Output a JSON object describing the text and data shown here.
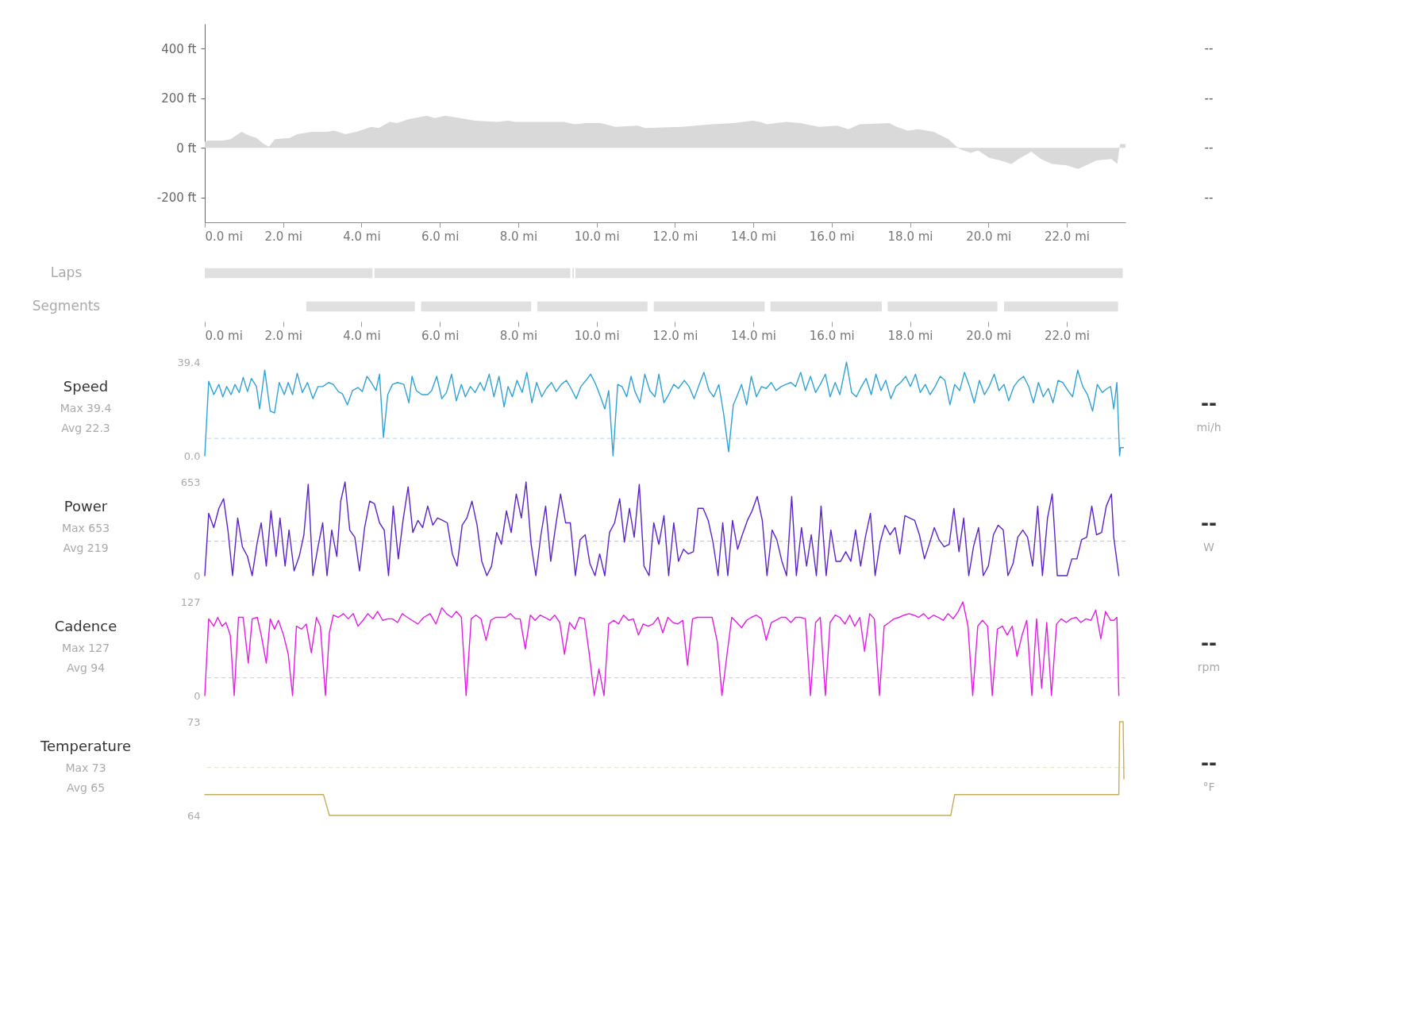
{
  "chart_data": [
    {
      "type": "area",
      "color": "#d9d9d9",
      "x": [
        0,
        0.09,
        0.47,
        0.66,
        0.94,
        1.13,
        1.32,
        1.51,
        1.64,
        1.79,
        2.17,
        2.36,
        2.74,
        3.12,
        3.3,
        3.59,
        3.87,
        4.25,
        4.44,
        4.72,
        4.91,
        5.19,
        5.67,
        5.86,
        6.14,
        6.52,
        6.89,
        7.46,
        7.74,
        7.93,
        8.4,
        9.16,
        9.44,
        9.73,
        10.1,
        10.48,
        11.05,
        11.24,
        12.18,
        12.94,
        13.5,
        13.98,
        14.17,
        14.35,
        14.83,
        15.2,
        15.68,
        16.15,
        16.43,
        16.71,
        17.47,
        17.66,
        17.94,
        18.22,
        18.6,
        18.98,
        19.26,
        19.55,
        19.74,
        20.02,
        20.3,
        20.59,
        20.77,
        21.1,
        21.34,
        21.62,
        22.0,
        22.29,
        22.57,
        22.76,
        23.14,
        23.29,
        23.36,
        23.5
      ],
      "values": [
        25,
        30,
        30,
        35,
        65,
        50,
        40,
        15,
        5,
        35,
        40,
        55,
        65,
        65,
        70,
        55,
        65,
        85,
        80,
        105,
        100,
        115,
        130,
        120,
        130,
        120,
        110,
        105,
        110,
        105,
        105,
        105,
        95,
        100,
        100,
        85,
        90,
        80,
        85,
        95,
        100,
        110,
        105,
        95,
        105,
        100,
        85,
        90,
        75,
        95,
        100,
        85,
        70,
        75,
        65,
        35,
        -5,
        -20,
        -10,
        -40,
        -50,
        -65,
        -45,
        -15,
        -45,
        -65,
        -70,
        -85,
        -65,
        -50,
        -45,
        -65,
        15,
        15
      ],
      "xlim": [
        0,
        23.5
      ],
      "xticks": [
        {
          "value": 0,
          "label": "0.0 mi"
        },
        {
          "value": 2,
          "label": "2.0 mi"
        },
        {
          "value": 4,
          "label": "4.0 mi"
        },
        {
          "value": 6,
          "label": "6.0 mi"
        },
        {
          "value": 8,
          "label": "8.0 mi"
        },
        {
          "value": 10,
          "label": "10.0 mi"
        },
        {
          "value": 12,
          "label": "12.0 mi"
        },
        {
          "value": 14,
          "label": "14.0 mi"
        },
        {
          "value": 16,
          "label": "16.0 mi"
        },
        {
          "value": 18,
          "label": "18.0 mi"
        },
        {
          "value": 20,
          "label": "20.0 mi"
        },
        {
          "value": 22,
          "label": "22.0 mi"
        }
      ],
      "ylim": [
        -300,
        500
      ],
      "yticks": [
        {
          "value": -200,
          "label": "-200 ft"
        },
        {
          "value": 0,
          "label": "0 ft"
        },
        {
          "value": 200,
          "label": "200 ft"
        },
        {
          "value": 400,
          "label": "400 ft"
        }
      ],
      "annotations": [
        "--",
        "--",
        "--",
        "--"
      ]
    },
    {
      "type": "bar",
      "orientation": "horizontal",
      "categories": [
        "Laps",
        "Segments"
      ],
      "xlim": [
        0,
        23.5
      ],
      "xticks": [
        {
          "value": 0,
          "label": "0.0 mi"
        },
        {
          "value": 2,
          "label": "2.0 mi"
        },
        {
          "value": 4,
          "label": "4.0 mi"
        },
        {
          "value": 6,
          "label": "6.0 mi"
        },
        {
          "value": 8,
          "label": "8.0 mi"
        },
        {
          "value": 10,
          "label": "10.0 mi"
        },
        {
          "value": 12,
          "label": "12.0 mi"
        },
        {
          "value": 14,
          "label": "14.0 mi"
        },
        {
          "value": 16,
          "label": "16.0 mi"
        },
        {
          "value": 18,
          "label": "18.0 mi"
        },
        {
          "value": 20,
          "label": "20.0 mi"
        },
        {
          "value": 22,
          "label": "22.0 mi"
        }
      ],
      "series": [
        {
          "color": "#e0e0e0",
          "values": [
            4.28,
            2.77
          ],
          "base": [
            0,
            2.59
          ]
        },
        {
          "color": "#e0e0e0",
          "values": [
            5.0,
            2.81
          ],
          "base": [
            4.33,
            5.52
          ]
        },
        {
          "color": "#e0e0e0",
          "values": [
            0.04,
            2.81
          ],
          "base": [
            9.38,
            8.49
          ]
        },
        {
          "color": "#e0e0e0",
          "values": [
            13.97,
            2.83
          ],
          "base": [
            9.46,
            11.46
          ]
        },
        {
          "color": "#e0e0e0",
          "values": [
            null,
            2.84
          ],
          "base": [
            null,
            14.44
          ]
        },
        {
          "color": "#e0e0e0",
          "values": [
            null,
            2.8
          ],
          "base": [
            null,
            17.43
          ]
        },
        {
          "color": "#e0e0e0",
          "values": [
            null,
            2.91
          ],
          "base": [
            null,
            20.4
          ]
        }
      ]
    },
    {
      "type": "line",
      "title": "Speed",
      "annotations": [
        "Max 39.4",
        "Avg 22.3",
        "--",
        "mi/h"
      ],
      "x": [
        0,
        0.1,
        0.23,
        0.36,
        0.46,
        0.56,
        0.67,
        0.77,
        0.88,
        0.98,
        1.09,
        1.19,
        1.32,
        1.4,
        1.53,
        1.67,
        1.78,
        1.9,
        2.03,
        2.13,
        2.24,
        2.36,
        2.49,
        2.62,
        2.76,
        2.89,
        3.01,
        3.16,
        3.28,
        3.41,
        3.51,
        3.64,
        3.77,
        3.91,
        4.02,
        4.14,
        4.25,
        4.37,
        4.46,
        4.56,
        4.67,
        4.79,
        4.92,
        5.08,
        5.21,
        5.29,
        5.4,
        5.54,
        5.69,
        5.79,
        5.92,
        6.05,
        6.17,
        6.3,
        6.42,
        6.55,
        6.65,
        6.78,
        6.9,
        7.03,
        7.13,
        7.26,
        7.38,
        7.51,
        7.64,
        7.74,
        7.85,
        7.97,
        8.1,
        8.22,
        8.35,
        8.47,
        8.6,
        8.72,
        8.85,
        8.97,
        9.1,
        9.23,
        9.35,
        9.48,
        9.6,
        9.73,
        9.85,
        9.98,
        10.1,
        10.21,
        10.31,
        10.42,
        10.54,
        10.65,
        10.77,
        10.88,
        10.98,
        11.11,
        11.23,
        11.36,
        11.49,
        11.59,
        11.72,
        11.84,
        11.97,
        12.09,
        12.24,
        12.36,
        12.49,
        12.62,
        12.74,
        12.87,
        12.99,
        13.12,
        13.24,
        13.37,
        13.49,
        13.6,
        13.7,
        13.83,
        13.95,
        14.08,
        14.21,
        14.33,
        14.46,
        14.58,
        14.71,
        14.83,
        14.96,
        15.08,
        15.21,
        15.33,
        15.46,
        15.59,
        15.71,
        15.84,
        15.96,
        16.09,
        16.21,
        16.38,
        16.51,
        16.63,
        16.76,
        16.88,
        17.01,
        17.13,
        17.26,
        17.38,
        17.51,
        17.64,
        17.76,
        17.89,
        18.01,
        18.14,
        18.26,
        18.39,
        18.51,
        18.64,
        18.77,
        18.89,
        19.02,
        19.14,
        19.27,
        19.39,
        19.52,
        19.64,
        19.77,
        19.9,
        20.02,
        20.15,
        20.27,
        20.4,
        20.52,
        20.65,
        20.77,
        20.9,
        21.03,
        21.15,
        21.28,
        21.4,
        21.53,
        21.65,
        21.78,
        21.9,
        22.03,
        22.15,
        22.28,
        22.41,
        22.53,
        22.66,
        22.78,
        22.91,
        23.03,
        23.12,
        23.2,
        23.28,
        23.35,
        23.37,
        23.45
      ],
      "series": [
        {
          "color": "#2fa2d6",
          "values": [
            0,
            31.3,
            25.7,
            30.0,
            24.8,
            29.1,
            25.7,
            30.0,
            26.6,
            33.0,
            27.0,
            32.5,
            29.1,
            19.7,
            36.0,
            18.8,
            18.0,
            30.8,
            25.7,
            30.8,
            25.7,
            34.7,
            26.6,
            30.8,
            24.0,
            29.1,
            29.1,
            30.8,
            30.0,
            27.0,
            26.1,
            21.4,
            27.4,
            28.7,
            27.0,
            33.4,
            30.8,
            27.4,
            34.3,
            7.7,
            25.7,
            30.0,
            30.8,
            30.0,
            22.3,
            33.4,
            27.4,
            25.7,
            25.7,
            27.4,
            33.4,
            24.0,
            26.6,
            34.3,
            23.1,
            30.0,
            24.8,
            29.1,
            26.6,
            30.8,
            27.4,
            34.3,
            24.8,
            33.4,
            20.6,
            29.1,
            24.8,
            31.7,
            26.6,
            35.1,
            22.3,
            30.8,
            24.8,
            28.3,
            30.8,
            27.0,
            30.0,
            31.7,
            28.3,
            24.0,
            29.1,
            31.7,
            34.3,
            30.0,
            24.8,
            19.7,
            27.4,
            0,
            30.0,
            29.1,
            24.8,
            33.4,
            27.0,
            22.3,
            34.3,
            27.4,
            24.8,
            34.3,
            22.3,
            25.7,
            30.0,
            28.3,
            31.7,
            29.1,
            24.0,
            30.0,
            35.1,
            27.4,
            24.8,
            30.0,
            18.0,
            1.7,
            21.4,
            25.7,
            30.0,
            21.4,
            33.4,
            24.8,
            29.1,
            28.3,
            30.8,
            27.4,
            29.1,
            30.0,
            30.8,
            29.1,
            35.1,
            27.4,
            33.4,
            26.6,
            30.0,
            34.3,
            24.8,
            30.8,
            25.7,
            39.4,
            26.6,
            24.8,
            29.1,
            32.5,
            25.7,
            34.3,
            27.4,
            31.7,
            24.0,
            29.1,
            30.8,
            33.4,
            29.1,
            34.3,
            26.6,
            30.0,
            25.7,
            29.1,
            33.4,
            31.7,
            21.4,
            30.0,
            27.4,
            35.1,
            29.1,
            22.3,
            31.7,
            25.7,
            29.1,
            34.3,
            27.4,
            30.0,
            23.1,
            29.1,
            31.7,
            33.4,
            29.1,
            22.3,
            30.8,
            24.8,
            28.3,
            22.3,
            31.7,
            30.8,
            27.4,
            24.8,
            36.0,
            29.1,
            25.7,
            18.8,
            30.0,
            26.6,
            28.3,
            29.1,
            19.7,
            30.8,
            0,
            3.4,
            3.4
          ]
        }
      ],
      "xlim": [
        0,
        23.5
      ],
      "tick_labels": "y",
      "ylim": [
        0,
        39.4
      ],
      "yticks": [
        {
          "value": 0,
          "label": "0.0"
        },
        39.4
      ],
      "ref_lines": [
        {
          "axis": "y",
          "value": 7.3,
          "color": "#a9dcef",
          "line_style": "dashed"
        }
      ]
    },
    {
      "type": "line",
      "title": "Power",
      "annotations": [
        "Max 653",
        "Avg 219",
        "--",
        "W"
      ],
      "x": [
        0,
        0.1,
        0.23,
        0.36,
        0.48,
        0.59,
        0.71,
        0.84,
        0.96,
        1.09,
        1.21,
        1.34,
        1.44,
        1.57,
        1.69,
        1.82,
        1.92,
        2.05,
        2.15,
        2.28,
        2.41,
        2.53,
        2.64,
        2.76,
        2.89,
        3.01,
        3.12,
        3.24,
        3.37,
        3.47,
        3.58,
        3.7,
        3.83,
        3.95,
        4.08,
        4.21,
        4.33,
        4.46,
        4.58,
        4.69,
        4.81,
        4.94,
        5.06,
        5.19,
        5.31,
        5.44,
        5.56,
        5.69,
        5.82,
        5.94,
        6.07,
        6.19,
        6.32,
        6.44,
        6.57,
        6.69,
        6.82,
        6.95,
        7.07,
        7.2,
        7.32,
        7.45,
        7.57,
        7.7,
        7.82,
        7.95,
        8.08,
        8.2,
        8.33,
        8.45,
        8.58,
        8.7,
        8.83,
        8.95,
        9.08,
        9.21,
        9.33,
        9.46,
        9.58,
        9.71,
        9.83,
        9.96,
        10.08,
        10.21,
        10.33,
        10.46,
        10.59,
        10.71,
        10.84,
        10.96,
        11.09,
        11.21,
        11.34,
        11.46,
        11.59,
        11.72,
        11.84,
        11.97,
        12.09,
        12.22,
        12.34,
        12.47,
        12.59,
        12.72,
        12.85,
        12.97,
        13.1,
        13.22,
        13.35,
        13.47,
        13.6,
        13.72,
        13.85,
        13.97,
        14.1,
        14.23,
        14.35,
        14.48,
        14.6,
        14.73,
        14.85,
        14.98,
        15.1,
        15.23,
        15.36,
        15.48,
        15.61,
        15.73,
        15.86,
        15.98,
        16.11,
        16.23,
        16.36,
        16.49,
        16.61,
        16.74,
        16.86,
        16.99,
        17.11,
        17.24,
        17.36,
        17.49,
        17.62,
        17.74,
        17.87,
        17.99,
        18.12,
        18.24,
        18.37,
        18.49,
        18.62,
        18.74,
        18.87,
        19.0,
        19.12,
        19.25,
        19.37,
        19.5,
        19.62,
        19.75,
        19.87,
        20.0,
        20.13,
        20.25,
        20.38,
        20.5,
        20.63,
        20.75,
        20.88,
        21.0,
        21.13,
        21.26,
        21.38,
        21.51,
        21.63,
        21.76,
        21.88,
        22.01,
        22.13,
        22.26,
        22.38,
        22.51,
        22.64,
        22.76,
        22.89,
        23.01,
        23.14,
        23.2,
        23.33
      ],
      "series": [
        {
          "color": "#5b22c9",
          "values": [
            0,
            435,
            335,
            469,
            536,
            318,
            0,
            402,
            201,
            134,
            0,
            234,
            368,
            67,
            452,
            134,
            402,
            67,
            318,
            33,
            134,
            285,
            636,
            0,
            201,
            368,
            0,
            318,
            134,
            519,
            653,
            318,
            268,
            33,
            335,
            519,
            502,
            368,
            318,
            0,
            485,
            117,
            385,
            619,
            301,
            385,
            335,
            485,
            352,
            402,
            385,
            368,
            151,
            67,
            352,
            402,
            519,
            352,
            100,
            0,
            67,
            301,
            218,
            452,
            301,
            569,
            402,
            653,
            218,
            0,
            285,
            485,
            100,
            335,
            569,
            368,
            368,
            0,
            251,
            285,
            84,
            0,
            151,
            0,
            301,
            368,
            536,
            234,
            469,
            268,
            636,
            67,
            0,
            368,
            218,
            418,
            0,
            368,
            100,
            184,
            151,
            167,
            469,
            469,
            385,
            234,
            0,
            368,
            0,
            385,
            184,
            285,
            385,
            452,
            552,
            385,
            0,
            318,
            251,
            100,
            0,
            552,
            0,
            335,
            67,
            285,
            0,
            485,
            0,
            318,
            100,
            100,
            167,
            100,
            318,
            67,
            268,
            435,
            0,
            234,
            352,
            285,
            335,
            151,
            418,
            402,
            385,
            285,
            117,
            218,
            335,
            251,
            201,
            218,
            469,
            167,
            402,
            0,
            201,
            335,
            0,
            67,
            285,
            352,
            318,
            0,
            84,
            268,
            318,
            268,
            67,
            485,
            0,
            402,
            569,
            0,
            0,
            0,
            117,
            117,
            251,
            268,
            485,
            285,
            301,
            485,
            569,
            268,
            0
          ]
        }
      ],
      "xlim": [
        0,
        23.5
      ],
      "tick_labels": "y",
      "ylim": [
        0,
        653
      ],
      "yticks": [
        0,
        653
      ],
      "ref_lines": [
        {
          "axis": "y",
          "value": 240,
          "color": "#c4b5ee",
          "line_style": "dashed"
        }
      ]
    },
    {
      "type": "line",
      "title": "Cadence",
      "annotations": [
        "Max 127",
        "Avg 94",
        "--",
        "rpm"
      ],
      "x": [
        0,
        0.1,
        0.23,
        0.33,
        0.44,
        0.54,
        0.65,
        0.75,
        0.86,
        0.98,
        1.11,
        1.21,
        1.34,
        1.44,
        1.57,
        1.67,
        1.78,
        1.88,
        2.01,
        2.13,
        2.24,
        2.34,
        2.47,
        2.59,
        2.72,
        2.85,
        2.95,
        3.08,
        3.18,
        3.28,
        3.41,
        3.54,
        3.66,
        3.79,
        3.91,
        4.04,
        4.16,
        4.29,
        4.41,
        4.54,
        4.67,
        4.79,
        4.92,
        5.04,
        5.17,
        5.29,
        5.44,
        5.59,
        5.75,
        5.9,
        6.05,
        6.17,
        6.3,
        6.42,
        6.55,
        6.67,
        6.8,
        6.92,
        7.05,
        7.18,
        7.3,
        7.43,
        7.55,
        7.68,
        7.8,
        7.93,
        8.05,
        8.18,
        8.31,
        8.43,
        8.56,
        8.68,
        8.81,
        8.93,
        9.06,
        9.18,
        9.31,
        9.44,
        9.56,
        9.69,
        9.81,
        9.94,
        10.06,
        10.19,
        10.31,
        10.44,
        10.56,
        10.69,
        10.82,
        10.94,
        11.07,
        11.19,
        11.32,
        11.44,
        11.57,
        11.69,
        11.82,
        11.95,
        12.07,
        12.2,
        12.32,
        12.45,
        12.57,
        12.7,
        12.82,
        12.95,
        13.08,
        13.2,
        13.33,
        13.45,
        13.58,
        13.7,
        13.83,
        13.95,
        14.08,
        14.21,
        14.33,
        14.46,
        14.58,
        14.71,
        14.83,
        14.96,
        15.08,
        15.21,
        15.33,
        15.46,
        15.59,
        15.71,
        15.84,
        15.96,
        16.09,
        16.21,
        16.34,
        16.46,
        16.59,
        16.72,
        16.84,
        16.97,
        17.09,
        17.22,
        17.34,
        17.47,
        17.59,
        17.72,
        17.85,
        17.97,
        18.1,
        18.22,
        18.35,
        18.47,
        18.6,
        18.72,
        18.85,
        18.97,
        19.1,
        19.23,
        19.35,
        19.48,
        19.6,
        19.73,
        19.85,
        19.98,
        20.1,
        20.23,
        20.36,
        20.48,
        20.61,
        20.73,
        20.86,
        20.98,
        21.11,
        21.23,
        21.36,
        21.49,
        21.61,
        21.74,
        21.86,
        21.99,
        22.11,
        22.24,
        22.36,
        22.49,
        22.62,
        22.74,
        22.87,
        22.99,
        23.12,
        23.2,
        23.28,
        23.33
      ],
      "series": [
        {
          "color": "#e31ce6",
          "values": [
            0,
            104,
            94,
            106,
            94,
            99,
            82,
            0,
            106,
            106,
            44,
            104,
            106,
            82,
            44,
            104,
            90,
            102,
            82,
            56,
            0,
            94,
            90,
            97,
            58,
            106,
            94,
            0,
            85,
            109,
            106,
            111,
            104,
            111,
            94,
            102,
            111,
            104,
            114,
            102,
            104,
            104,
            99,
            111,
            106,
            102,
            97,
            106,
            111,
            97,
            119,
            111,
            106,
            114,
            106,
            0,
            104,
            109,
            104,
            75,
            102,
            106,
            106,
            106,
            111,
            104,
            104,
            63,
            109,
            102,
            109,
            106,
            102,
            109,
            99,
            56,
            99,
            90,
            106,
            104,
            58,
            0,
            36,
            0,
            97,
            102,
            97,
            109,
            102,
            104,
            82,
            97,
            94,
            97,
            106,
            85,
            106,
            99,
            97,
            102,
            41,
            104,
            106,
            106,
            106,
            106,
            73,
            0,
            56,
            106,
            99,
            92,
            102,
            106,
            109,
            104,
            75,
            99,
            102,
            106,
            106,
            99,
            106,
            106,
            104,
            0,
            99,
            106,
            0,
            99,
            109,
            106,
            97,
            109,
            94,
            106,
            60,
            111,
            104,
            0,
            94,
            99,
            104,
            106,
            109,
            111,
            109,
            106,
            111,
            104,
            109,
            106,
            102,
            111,
            104,
            114,
            127,
            94,
            0,
            94,
            102,
            94,
            0,
            90,
            94,
            82,
            94,
            53,
            82,
            102,
            0,
            104,
            10,
            99,
            0,
            97,
            104,
            99,
            104,
            106,
            99,
            104,
            102,
            116,
            77,
            114,
            102,
            102,
            106,
            0
          ]
        }
      ],
      "xlim": [
        0,
        23.5
      ],
      "tick_labels": "y",
      "ylim": [
        0,
        127
      ],
      "yticks": [
        0,
        127
      ],
      "ref_lines": [
        {
          "axis": "y",
          "value": 24,
          "color": "#f5a9f5",
          "line_style": "dashed"
        }
      ]
    },
    {
      "type": "line",
      "title": "Temperature",
      "annotations": [
        "Max 73",
        "Avg 65",
        "--",
        "°F"
      ],
      "x": [
        0,
        3.03,
        3.18,
        19.04,
        19.14,
        23.33,
        23.35,
        23.44,
        23.46
      ],
      "series": [
        {
          "color": "#c4ae5e",
          "values": [
            66,
            66,
            64,
            64,
            66,
            66,
            73,
            73,
            67.5
          ]
        }
      ],
      "xlim": [
        0,
        23.5
      ],
      "tick_labels": "y",
      "ylim": [
        64,
        73
      ],
      "yticks": [
        64,
        73
      ],
      "ref_lines": [
        {
          "axis": "y",
          "value": 68.6,
          "color": "#e6e1b4",
          "line_style": "dashed"
        }
      ]
    }
  ]
}
